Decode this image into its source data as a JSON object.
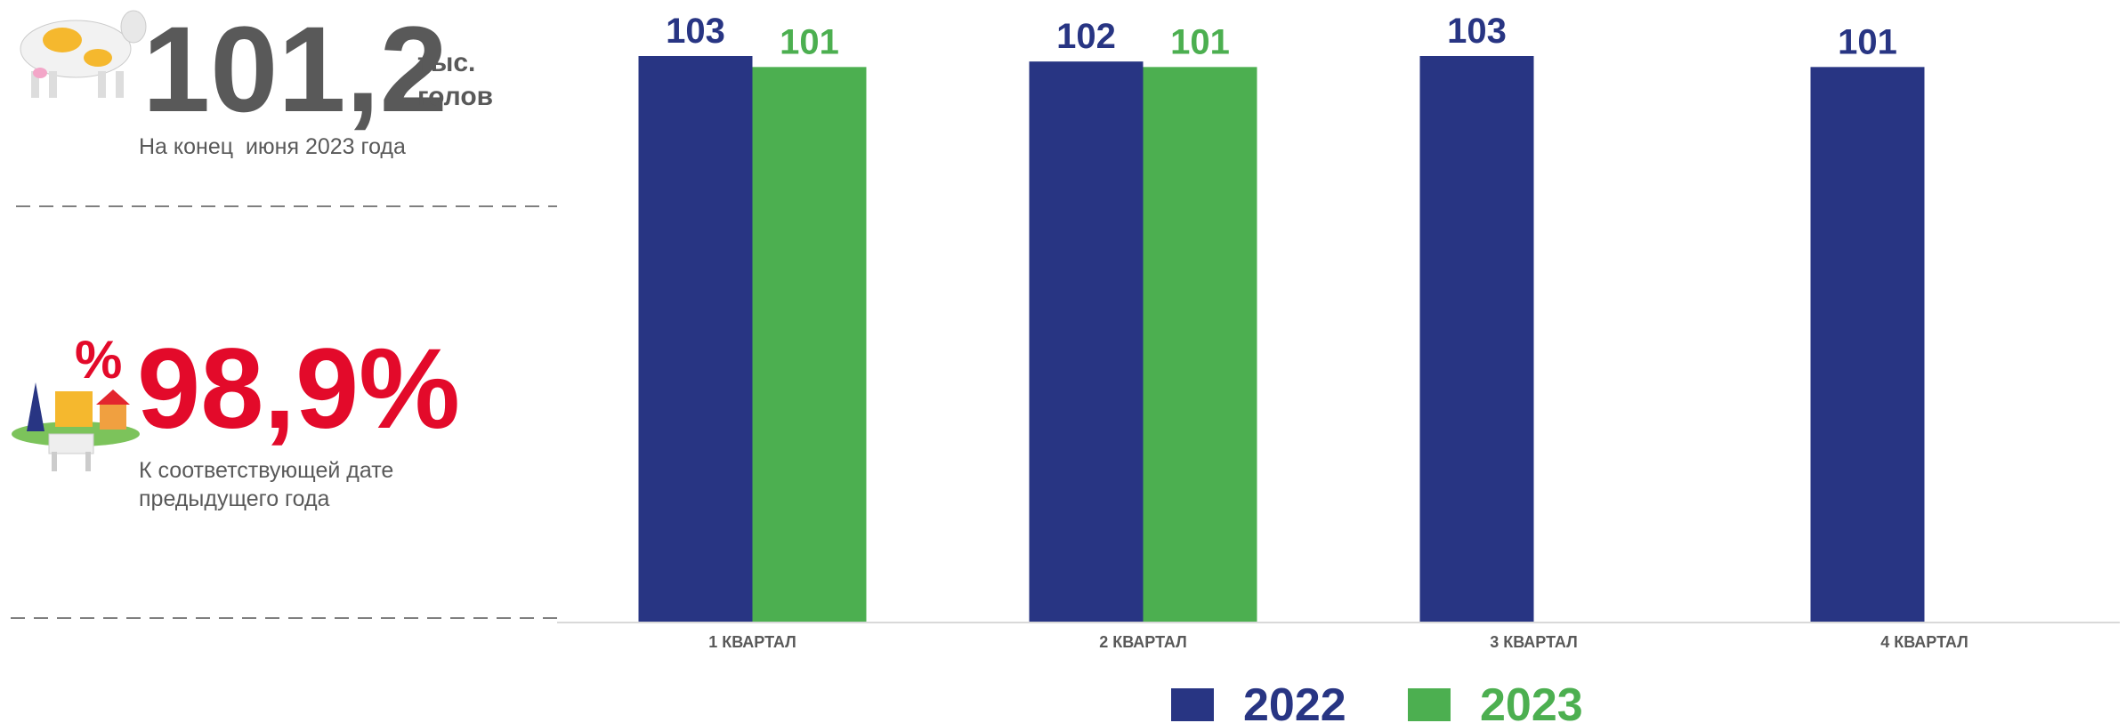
{
  "stats": [
    {
      "value": "101,2",
      "unit_top": "тыс.",
      "unit_bottom": "голов",
      "caption": [
        "На конец  июня 2023 года"
      ]
    },
    {
      "value": "98,9%",
      "icon_label": "%",
      "caption": [
        "К соответствующей дате",
        "предыдущего года"
      ]
    }
  ],
  "chart_data": {
    "type": "bar",
    "categories": [
      "1 КВАРТАЛ",
      "2 КВАРТАЛ",
      "3 КВАРТАЛ",
      "4 КВАРТАЛ"
    ],
    "series": [
      {
        "name": "2022",
        "color": "#283583",
        "values": [
          103,
          102,
          103,
          101
        ]
      },
      {
        "name": "2023",
        "color": "#4caf50",
        "values": [
          101,
          101,
          null,
          null
        ]
      }
    ],
    "legend": "bottom"
  }
}
